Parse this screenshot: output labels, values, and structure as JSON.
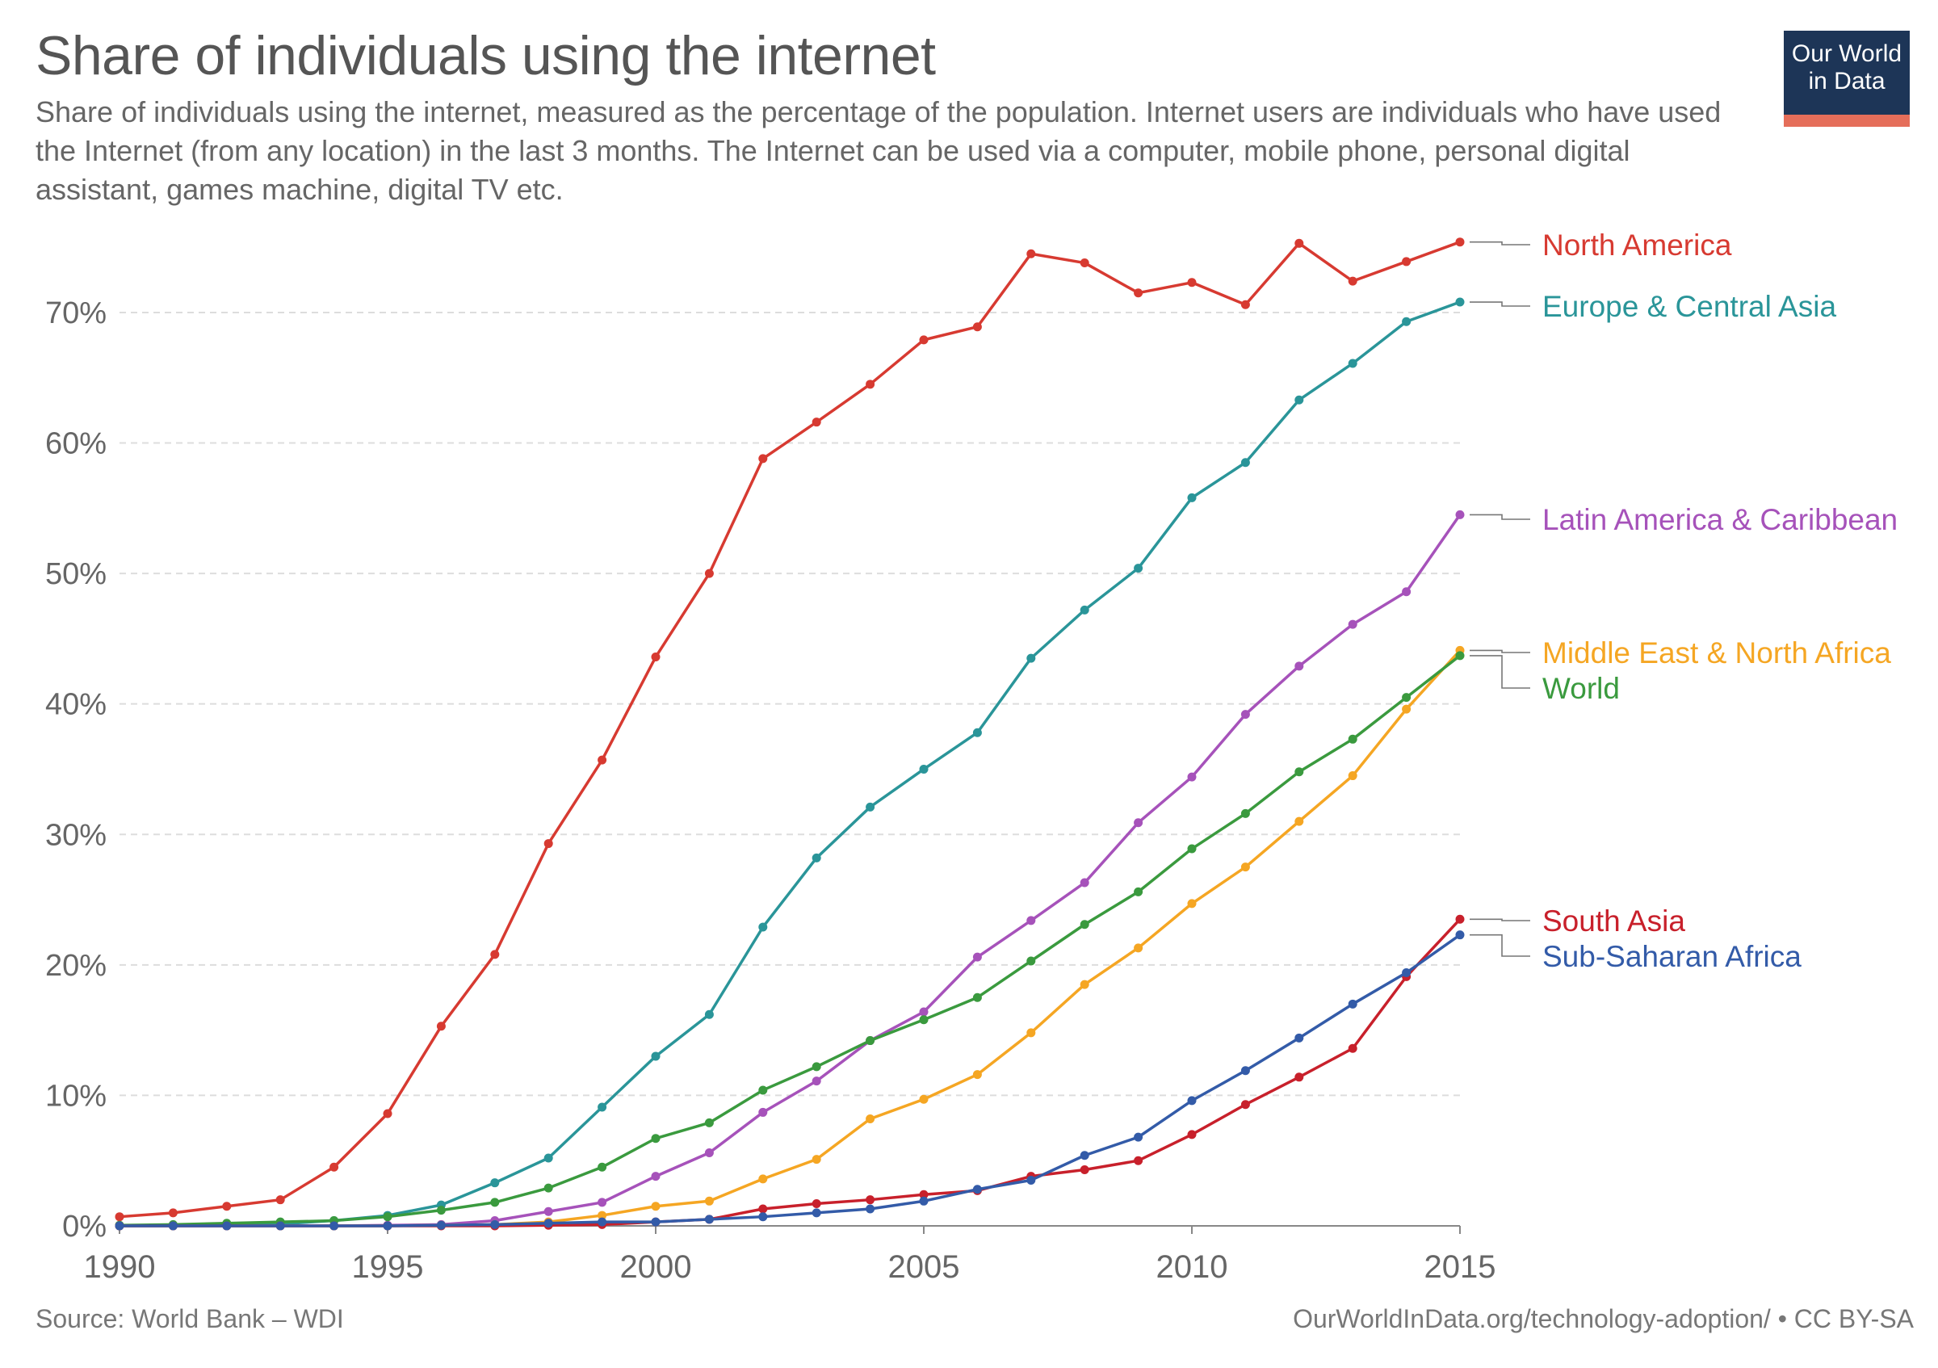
{
  "header": {
    "title": "Share of individuals using the internet",
    "subtitle": "Share of individuals using the internet, measured as the percentage of the population. Internet users are individuals who have used the Internet (from any location) in the last 3 months. The Internet can be used via a computer, mobile phone, personal digital assistant, games machine, digital TV etc."
  },
  "logo": {
    "line1": "Our World",
    "line2": "in Data",
    "bg_color": "#1d3557",
    "accent_color": "#e56e5a"
  },
  "footer": {
    "source": "Source: World Bank – WDI",
    "link": "OurWorldInData.org/technology-adoption/ • CC BY-SA"
  },
  "chart_data": {
    "type": "line",
    "title": "Share of individuals using the internet",
    "xlabel": "",
    "ylabel": "",
    "xlim": [
      1990,
      2015
    ],
    "ylim": [
      0,
      76
    ],
    "grid": true,
    "x_ticks": [
      "1990",
      "1995",
      "2000",
      "2005",
      "2010",
      "2015"
    ],
    "y_ticks": [
      {
        "value": 0,
        "label": "0%"
      },
      {
        "value": 10,
        "label": "10%"
      },
      {
        "value": 20,
        "label": "20%"
      },
      {
        "value": 30,
        "label": "30%"
      },
      {
        "value": 40,
        "label": "40%"
      },
      {
        "value": 50,
        "label": "50%"
      },
      {
        "value": 60,
        "label": "60%"
      },
      {
        "value": 70,
        "label": "70%"
      }
    ],
    "x": [
      1990,
      1991,
      1992,
      1993,
      1994,
      1995,
      1996,
      1997,
      1998,
      1999,
      2000,
      2001,
      2002,
      2003,
      2004,
      2005,
      2006,
      2007,
      2008,
      2009,
      2010,
      2011,
      2012,
      2013,
      2014,
      2015
    ],
    "series": [
      {
        "name": "North America",
        "label": "North America",
        "color": "#d73a31",
        "values": [
          0.7,
          1.0,
          1.5,
          2.0,
          4.5,
          8.6,
          15.3,
          20.8,
          29.3,
          35.7,
          43.6,
          50.0,
          58.8,
          61.6,
          64.5,
          67.9,
          68.9,
          74.5,
          73.8,
          71.5,
          72.3,
          70.6,
          75.3,
          72.4,
          73.9,
          75.4
        ]
      },
      {
        "name": "Europe & Central Asia",
        "label": "Europe & Central Asia",
        "color": "#2a9599",
        "values": [
          0.0,
          0.05,
          0.1,
          0.15,
          0.4,
          0.8,
          1.6,
          3.3,
          5.2,
          9.1,
          13.0,
          16.2,
          22.9,
          28.2,
          32.1,
          35.0,
          37.8,
          43.5,
          47.2,
          50.4,
          55.8,
          58.5,
          63.3,
          66.1,
          69.3,
          70.8
        ]
      },
      {
        "name": "Latin America & Caribbean",
        "label": "Latin America & Caribbean",
        "color": "#a652ba",
        "values": [
          0.0,
          0.0,
          0.0,
          0.0,
          0.0,
          0.05,
          0.1,
          0.4,
          1.1,
          1.8,
          3.8,
          5.6,
          8.7,
          11.1,
          14.2,
          16.4,
          20.6,
          23.4,
          26.3,
          30.9,
          34.4,
          39.2,
          42.9,
          46.1,
          48.6,
          54.5
        ]
      },
      {
        "name": "Middle East & North Africa",
        "label": "Middle East & North Africa",
        "color": "#f5a623",
        "values": [
          0.0,
          0.0,
          0.0,
          0.0,
          0.0,
          0.0,
          0.05,
          0.1,
          0.3,
          0.8,
          1.5,
          1.9,
          3.6,
          5.1,
          8.2,
          9.7,
          11.6,
          14.8,
          18.5,
          21.3,
          24.7,
          27.5,
          31.0,
          34.5,
          39.6,
          44.1
        ]
      },
      {
        "name": "World",
        "label": "World",
        "color": "#3a9a3e",
        "values": [
          0.05,
          0.1,
          0.2,
          0.3,
          0.4,
          0.7,
          1.2,
          1.8,
          2.9,
          4.5,
          6.7,
          7.9,
          10.4,
          12.2,
          14.2,
          15.8,
          17.5,
          20.3,
          23.1,
          25.6,
          28.9,
          31.6,
          34.8,
          37.3,
          40.5,
          43.7
        ]
      },
      {
        "name": "South Asia",
        "label": "South Asia",
        "color": "#c8202b",
        "values": [
          0.0,
          0.0,
          0.0,
          0.0,
          0.0,
          0.0,
          0.0,
          0.0,
          0.05,
          0.1,
          0.3,
          0.5,
          1.3,
          1.7,
          2.0,
          2.4,
          2.7,
          3.8,
          4.3,
          5.0,
          7.0,
          9.3,
          11.4,
          13.6,
          19.1,
          23.5
        ]
      },
      {
        "name": "Sub-Saharan Africa",
        "label": "Sub-Saharan Africa",
        "color": "#335ba8",
        "values": [
          0.0,
          0.0,
          0.0,
          0.0,
          0.0,
          0.0,
          0.05,
          0.1,
          0.2,
          0.3,
          0.3,
          0.5,
          0.7,
          1.0,
          1.3,
          1.9,
          2.8,
          3.5,
          5.4,
          6.8,
          9.6,
          11.9,
          14.4,
          17.0,
          19.4,
          22.3
        ]
      }
    ]
  }
}
